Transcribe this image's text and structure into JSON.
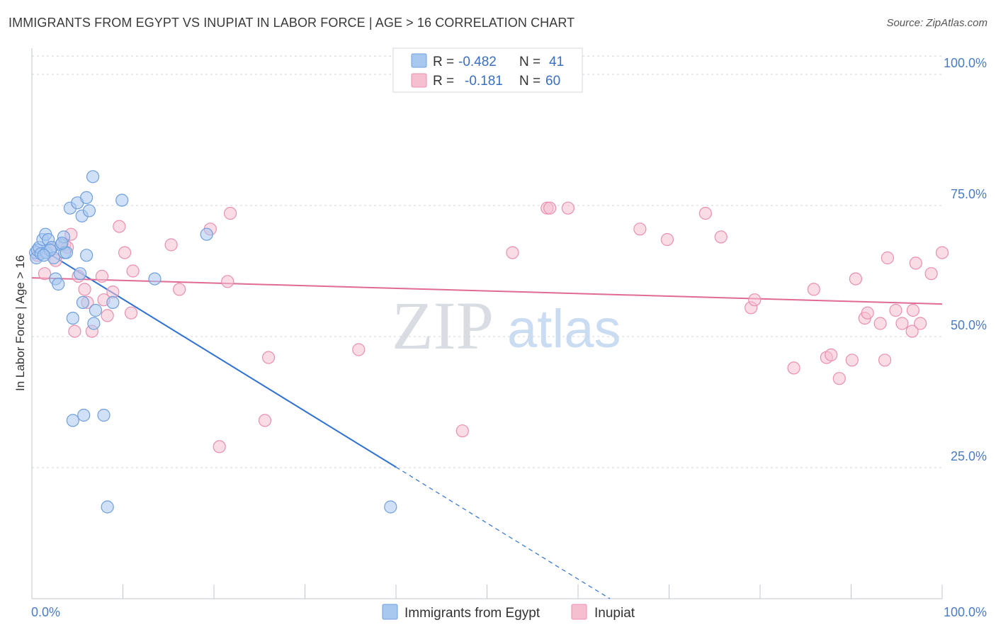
{
  "header": {
    "title": "IMMIGRANTS FROM EGYPT VS INUPIAT IN LABOR FORCE | AGE > 16 CORRELATION CHART",
    "source": "Source: ZipAtlas.com"
  },
  "watermark": {
    "zip": "ZIP",
    "atlas": "atlas"
  },
  "colors": {
    "blue_fill": "#a9c8f0",
    "blue_stroke": "#6e9fdc",
    "blue_line": "#2f72d0",
    "pink_fill": "#f6bfd0",
    "pink_stroke": "#e98fb0",
    "pink_line": "#e06a94",
    "grid": "#cfd6df",
    "tick_text": "#4a7cc4"
  },
  "legend": {
    "rows": [
      {
        "r_label": "R =",
        "r_value": "-0.482",
        "n_label": "N =",
        "n_value": "41"
      },
      {
        "r_label": "R =",
        "r_value": "-0.181",
        "n_label": "N =",
        "n_value": "60"
      }
    ]
  },
  "chart_data": {
    "type": "scatter",
    "title": "IMMIGRANTS FROM EGYPT VS INUPIAT IN LABOR FORCE | AGE > 16 CORRELATION CHART",
    "xlabel": "",
    "ylabel": "In Labor Force | Age > 16",
    "xlim": [
      0,
      100
    ],
    "ylim": [
      0,
      105
    ],
    "x_tick_labels": [
      "0.0%",
      "100.0%"
    ],
    "y_ticks": [
      25,
      50,
      75,
      100
    ],
    "y_tick_labels": [
      "25.0%",
      "50.0%",
      "75.0%",
      "100.0%"
    ],
    "legend_position": "bottom",
    "series": [
      {
        "name": "Immigrants from Egypt",
        "r": -0.482,
        "n": 41,
        "trend": {
          "x0": 0.3,
          "y0": 67.5,
          "x_solid_end": 40.0,
          "x1": 63.5,
          "y1": 0.0
        },
        "points": [
          [
            0.4,
            66.0
          ],
          [
            0.5,
            65.0
          ],
          [
            0.6,
            66.5
          ],
          [
            0.8,
            67.0
          ],
          [
            1.0,
            65.8
          ],
          [
            1.2,
            68.5
          ],
          [
            1.5,
            69.5
          ],
          [
            1.6,
            66.0
          ],
          [
            1.8,
            68.5
          ],
          [
            2.2,
            67.0
          ],
          [
            2.4,
            65.0
          ],
          [
            2.6,
            61.0
          ],
          [
            2.9,
            60.0
          ],
          [
            3.2,
            67.5
          ],
          [
            3.5,
            69.0
          ],
          [
            3.6,
            66.0
          ],
          [
            3.8,
            66.0
          ],
          [
            4.2,
            74.5
          ],
          [
            4.5,
            34.0
          ],
          [
            5.0,
            75.5
          ],
          [
            5.3,
            62.0
          ],
          [
            5.5,
            73.0
          ],
          [
            5.6,
            56.5
          ],
          [
            5.7,
            35.0
          ],
          [
            6.0,
            76.5
          ],
          [
            6.0,
            65.5
          ],
          [
            6.3,
            74.0
          ],
          [
            6.7,
            80.5
          ],
          [
            6.8,
            52.5
          ],
          [
            7.0,
            55.0
          ],
          [
            7.9,
            35.0
          ],
          [
            8.3,
            17.5
          ],
          [
            8.9,
            56.5
          ],
          [
            9.9,
            76.0
          ],
          [
            13.5,
            61.0
          ],
          [
            19.2,
            69.5
          ],
          [
            39.4,
            17.5
          ],
          [
            4.5,
            53.5
          ],
          [
            2.0,
            66.5
          ],
          [
            3.3,
            67.8
          ],
          [
            1.3,
            65.5
          ]
        ]
      },
      {
        "name": "Inupiat",
        "r": -0.181,
        "n": 60,
        "trend": {
          "x0": 0.0,
          "y0": 61.2,
          "x1": 100.0,
          "y1": 56.2
        },
        "points": [
          [
            0.6,
            65.5
          ],
          [
            1.4,
            62.0
          ],
          [
            2.2,
            67.0
          ],
          [
            2.6,
            64.5
          ],
          [
            3.6,
            67.5
          ],
          [
            3.9,
            67.0
          ],
          [
            4.3,
            69.5
          ],
          [
            4.7,
            51.0
          ],
          [
            5.1,
            61.5
          ],
          [
            5.8,
            59.0
          ],
          [
            6.1,
            56.5
          ],
          [
            6.6,
            51.0
          ],
          [
            7.7,
            61.5
          ],
          [
            7.9,
            57.0
          ],
          [
            8.3,
            54.0
          ],
          [
            8.9,
            58.5
          ],
          [
            9.6,
            71.0
          ],
          [
            10.2,
            66.0
          ],
          [
            10.9,
            54.5
          ],
          [
            11.1,
            62.5
          ],
          [
            15.3,
            67.5
          ],
          [
            16.2,
            59.0
          ],
          [
            19.6,
            70.5
          ],
          [
            20.6,
            29.0
          ],
          [
            21.5,
            60.5
          ],
          [
            21.8,
            73.5
          ],
          [
            25.6,
            34.0
          ],
          [
            26.0,
            46.0
          ],
          [
            35.9,
            47.5
          ],
          [
            47.3,
            32.0
          ],
          [
            52.8,
            66.0
          ],
          [
            56.6,
            74.5
          ],
          [
            56.9,
            74.5
          ],
          [
            58.9,
            74.5
          ],
          [
            66.8,
            70.5
          ],
          [
            69.8,
            68.5
          ],
          [
            74.0,
            73.5
          ],
          [
            75.7,
            69.0
          ],
          [
            79.0,
            55.5
          ],
          [
            79.4,
            57.0
          ],
          [
            83.7,
            44.0
          ],
          [
            85.9,
            59.0
          ],
          [
            87.3,
            46.0
          ],
          [
            87.8,
            46.5
          ],
          [
            88.7,
            42.0
          ],
          [
            90.1,
            45.5
          ],
          [
            90.5,
            61.0
          ],
          [
            91.5,
            53.5
          ],
          [
            93.2,
            52.5
          ],
          [
            93.7,
            45.5
          ],
          [
            94.0,
            65.0
          ],
          [
            94.9,
            55.0
          ],
          [
            95.6,
            52.5
          ],
          [
            96.7,
            51.0
          ],
          [
            96.8,
            55.0
          ],
          [
            97.1,
            64.0
          ],
          [
            97.6,
            52.5
          ],
          [
            98.8,
            62.0
          ],
          [
            100.0,
            66.0
          ],
          [
            91.8,
            54.5
          ]
        ]
      }
    ]
  }
}
